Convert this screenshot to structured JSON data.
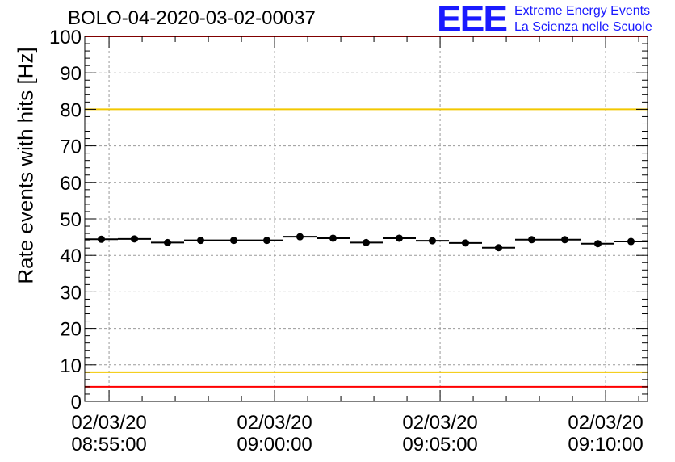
{
  "chart_data": {
    "type": "scatter",
    "title": "BOLO-04-2020-03-02-00037",
    "ylabel": "Rate events with hits [Hz]",
    "xlabel": "",
    "ylim": [
      0,
      100
    ],
    "yticks": [
      0,
      10,
      20,
      30,
      40,
      50,
      60,
      70,
      80,
      90,
      100
    ],
    "xlim": [
      "08:54:16",
      "09:11:16"
    ],
    "xticks": [
      {
        "date": "02/03/20",
        "time": "08:55:00"
      },
      {
        "date": "02/03/20",
        "time": "09:00:00"
      },
      {
        "date": "02/03/20",
        "time": "09:05:00"
      },
      {
        "date": "02/03/20",
        "time": "09:10:00"
      }
    ],
    "grid": true,
    "bin_width_seconds": 60,
    "series": [
      {
        "x": [
          "08:54:46",
          "08:55:46",
          "08:56:46",
          "08:57:46",
          "08:58:46",
          "08:59:46",
          "09:00:46",
          "09:01:46",
          "09:02:46",
          "09:03:46",
          "09:04:46",
          "09:05:46",
          "09:06:46",
          "09:07:46",
          "09:08:46",
          "09:09:46",
          "09:10:46"
        ],
        "y": [
          44.4,
          44.5,
          43.5,
          44.1,
          44.1,
          44.1,
          45.1,
          44.7,
          43.5,
          44.7,
          44.0,
          43.4,
          42.1,
          44.3,
          44.3,
          43.2,
          43.8
        ]
      }
    ],
    "reference_lines": [
      {
        "y": 100,
        "color": "#ff0000"
      },
      {
        "y": 80,
        "color": "#f2c800"
      },
      {
        "y": 8,
        "color": "#f2c800"
      },
      {
        "y": 4,
        "color": "#ff0000"
      }
    ]
  },
  "logo": {
    "text": "EEE",
    "line1": "Extreme Energy Events",
    "line2": "La Scienza nelle Scuole",
    "color": "#1a1aff"
  }
}
